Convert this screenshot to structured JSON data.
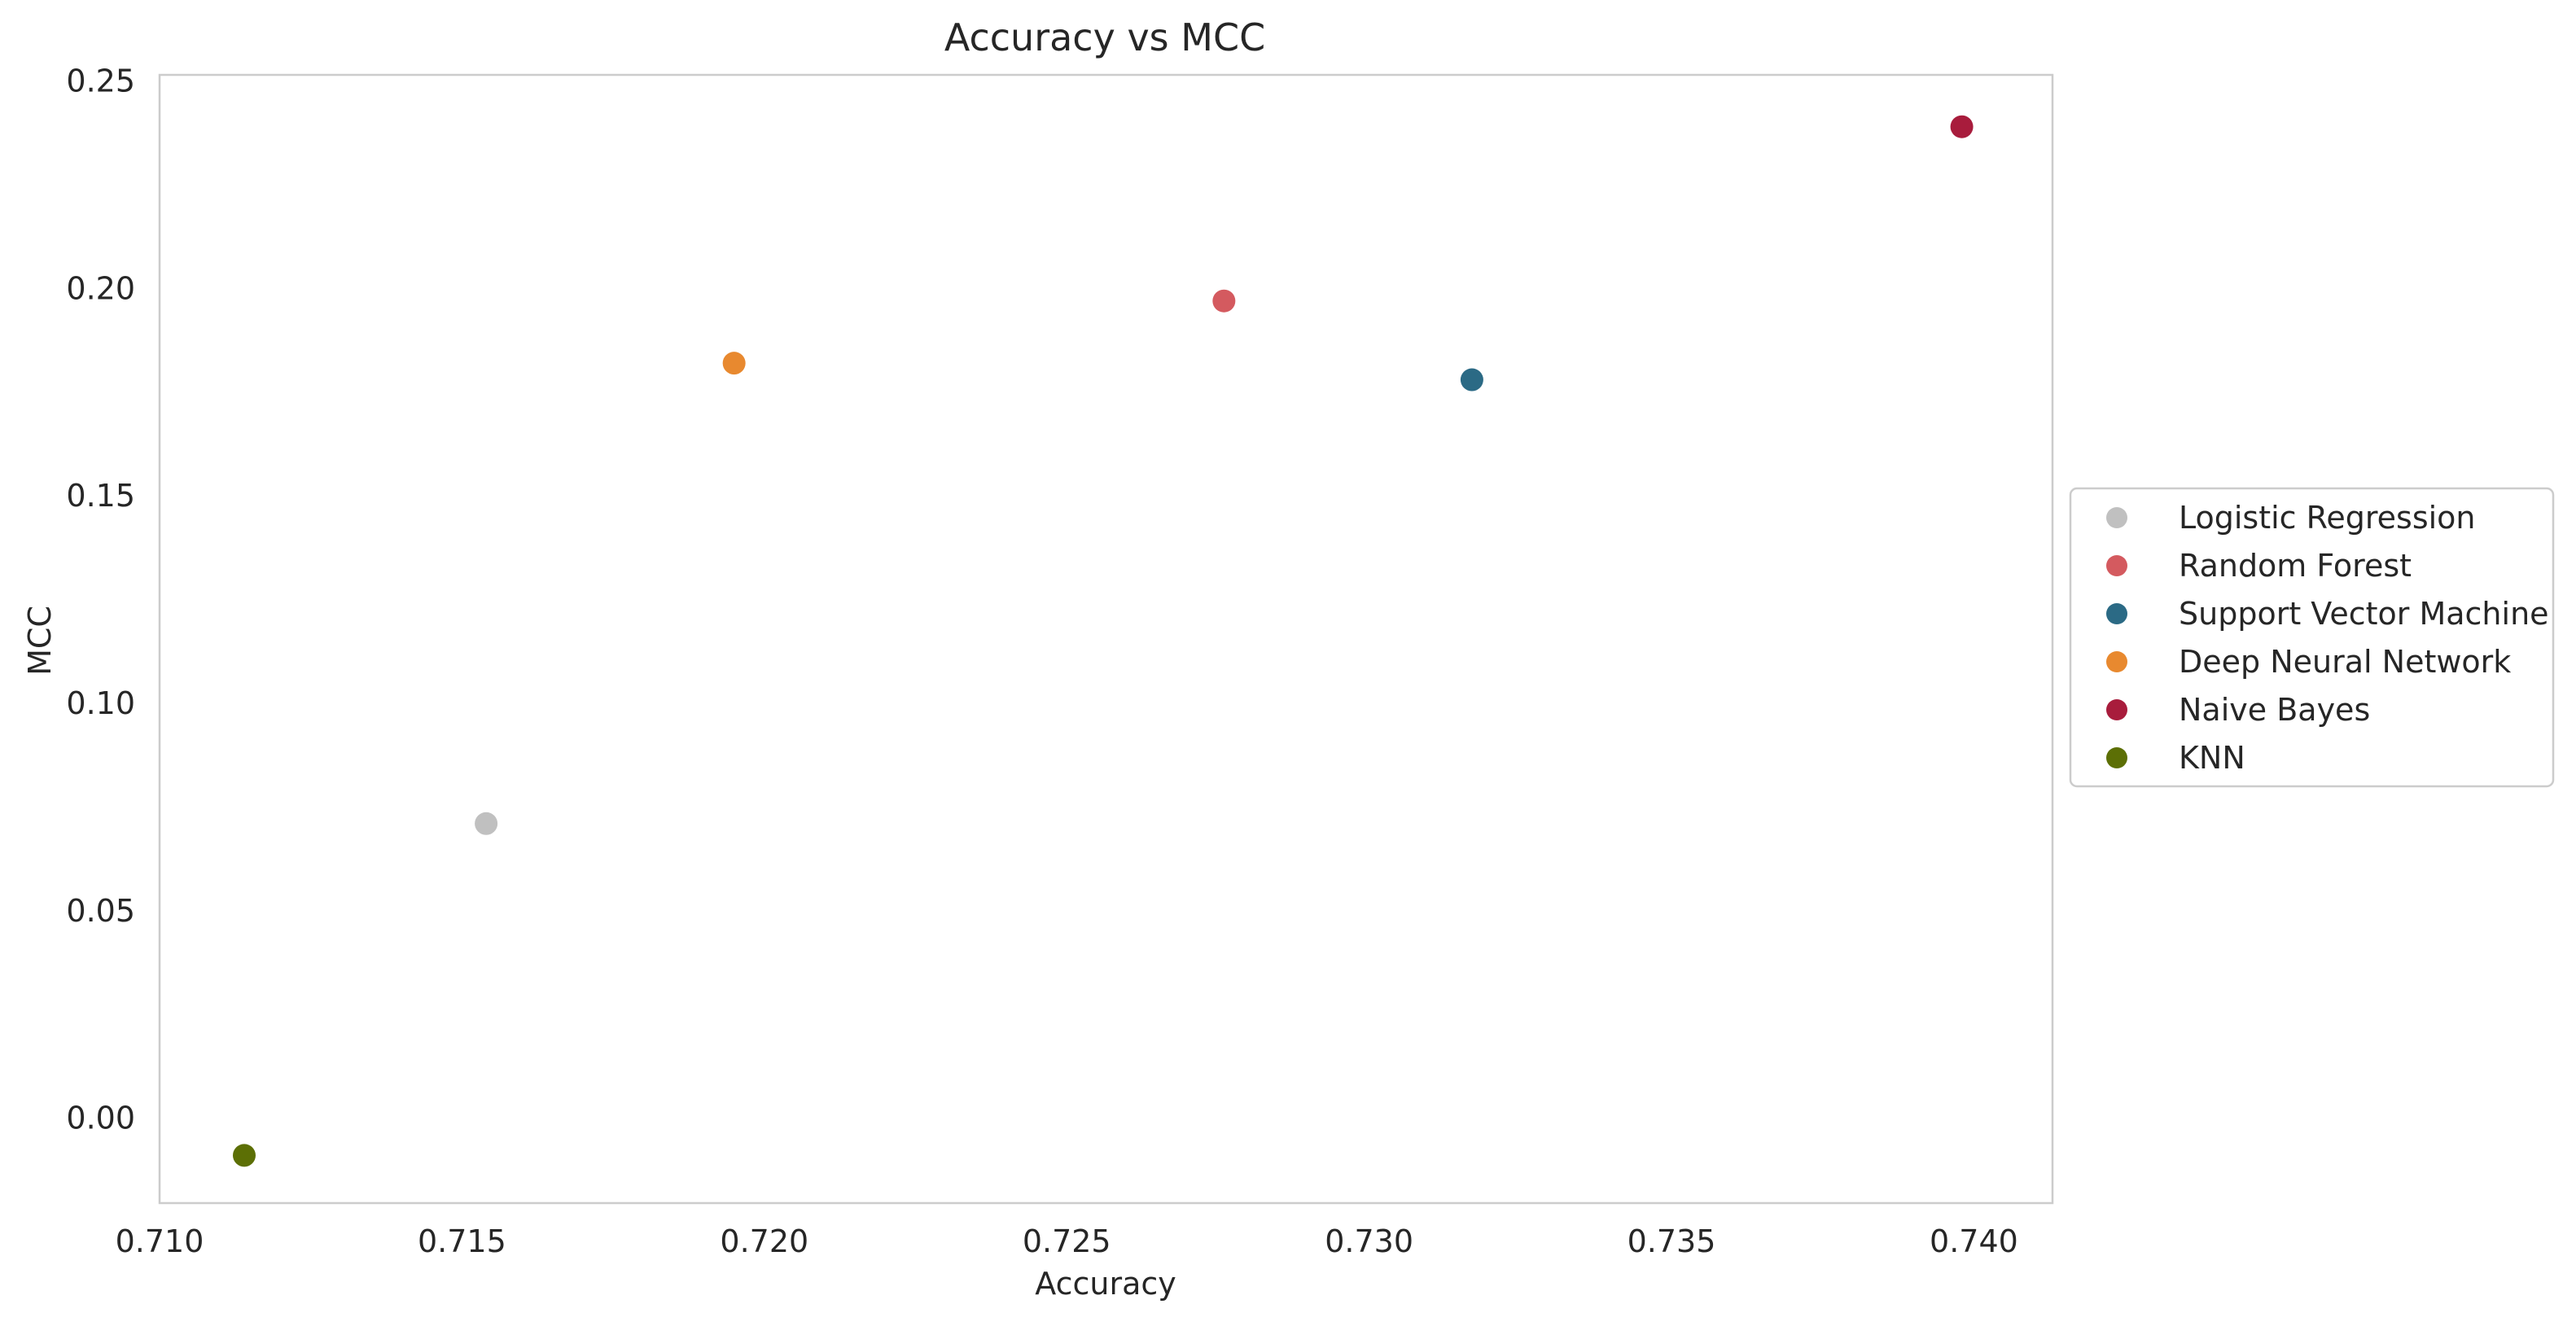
{
  "chart_data": {
    "type": "scatter",
    "title": "Accuracy vs MCC",
    "xlabel": "Accuracy",
    "ylabel": "MCC",
    "xlim": [
      0.71,
      0.7413
    ],
    "ylim": [
      -0.0205,
      0.2515
    ],
    "xticks": [
      0.71,
      0.715,
      0.72,
      0.725,
      0.73,
      0.735,
      0.74
    ],
    "xtick_labels": [
      "0.710",
      "0.715",
      "0.720",
      "0.725",
      "0.730",
      "0.735",
      "0.740"
    ],
    "yticks": [
      0.0,
      0.05,
      0.1,
      0.15,
      0.2,
      0.25
    ],
    "ytick_labels": [
      "0.00",
      "0.05",
      "0.10",
      "0.15",
      "0.20",
      "0.25"
    ],
    "grid": false,
    "legend_position": "center-right-outside",
    "series": [
      {
        "name": "Logistic Regression",
        "color": "#c0c0c0",
        "x": [
          0.7154
        ],
        "y": [
          0.071
        ]
      },
      {
        "name": "Random Forest",
        "color": "#d45a5f",
        "x": [
          0.7276
        ],
        "y": [
          0.197
        ]
      },
      {
        "name": "Support Vector Machine",
        "color": "#2b6a85",
        "x": [
          0.7317
        ],
        "y": [
          0.178
        ]
      },
      {
        "name": "Deep Neural Network",
        "color": "#e8892f",
        "x": [
          0.7195
        ],
        "y": [
          0.182
        ]
      },
      {
        "name": "Naive Bayes",
        "color": "#a81c3c",
        "x": [
          0.7398
        ],
        "y": [
          0.239
        ]
      },
      {
        "name": "KNN",
        "color": "#5c6f05",
        "x": [
          0.7114
        ],
        "y": [
          -0.009
        ]
      }
    ]
  }
}
